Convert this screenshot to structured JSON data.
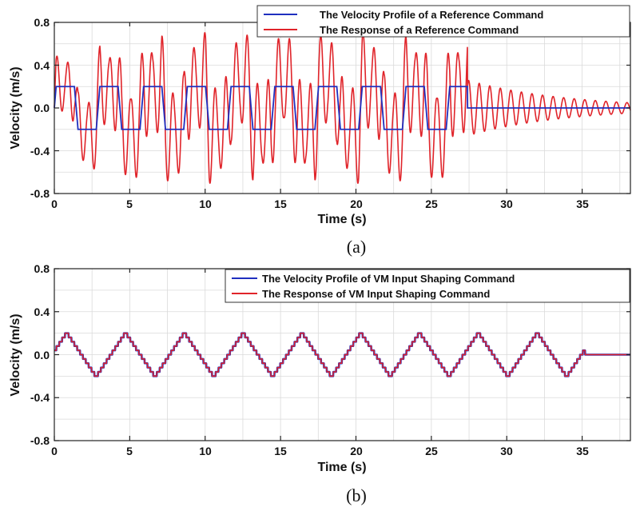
{
  "chart_data": [
    {
      "type": "line",
      "panel_caption": "(a)",
      "xlabel": "Time (s)",
      "ylabel": "Velocity (m/s)",
      "xlim": [
        0,
        38.2
      ],
      "ylim": [
        -0.8,
        0.8
      ],
      "xticks": [
        0,
        5,
        10,
        15,
        20,
        25,
        30,
        35
      ],
      "yticks": [
        -0.8,
        -0.4,
        0.0,
        0.4,
        0.8
      ],
      "xtick_labels": [
        "0",
        "5",
        "10",
        "15",
        "20",
        "25",
        "30",
        "35"
      ],
      "ytick_labels": [
        "-0.8",
        "-0.4",
        "0.0",
        "0.4",
        "0.8"
      ],
      "grid": true,
      "legend_position": "top-right",
      "command_profile": {
        "form": "periodic trapezoid",
        "period_s": 2.9,
        "amplitude": 0.2,
        "start_s": 0,
        "end_s": 27.4,
        "final_value": 0
      },
      "response_profile": {
        "form": "lightly damped oscillation around command",
        "oscillation_period_s": 0.7,
        "peak_amplitude_while_commanded": 0.72,
        "residual_amplitude_at_27_4s": 0.26,
        "residual_amplitude_at_38s": 0.05
      },
      "series": [
        {
          "name": "The Velocity Profile of a Reference Command",
          "color": "#1f2fbf"
        },
        {
          "name": "The Response of a Reference Command",
          "color": "#e0242a"
        }
      ]
    },
    {
      "type": "line",
      "panel_caption": "(b)",
      "xlabel": "Time (s)",
      "ylabel": "Velocity (m/s)",
      "xlim": [
        0,
        38.2
      ],
      "ylim": [
        -0.8,
        0.8
      ],
      "xticks": [
        0,
        5,
        10,
        15,
        20,
        25,
        30,
        35
      ],
      "yticks": [
        -0.8,
        -0.4,
        0.0,
        0.4,
        0.8
      ],
      "xtick_labels": [
        "0",
        "5",
        "10",
        "15",
        "20",
        "25",
        "30",
        "35"
      ],
      "ytick_labels": [
        "-0.8",
        "-0.4",
        "0.0",
        "0.4",
        "0.8"
      ],
      "grid": true,
      "legend_position": "top-right",
      "command_profile": {
        "form": "periodic staircase trapezoid",
        "period_s": 3.9,
        "amplitude": 0.2,
        "start_s": 0,
        "end_s": 35.2,
        "final_value": 0
      },
      "response_profile": {
        "form": "matches command (no residual vibration)"
      },
      "series": [
        {
          "name": "The Velocity Profile of VM Input Shaping Command",
          "color": "#1f2fbf"
        },
        {
          "name": "The Response of VM Input Shaping Command",
          "color": "#e0242a"
        }
      ]
    }
  ]
}
